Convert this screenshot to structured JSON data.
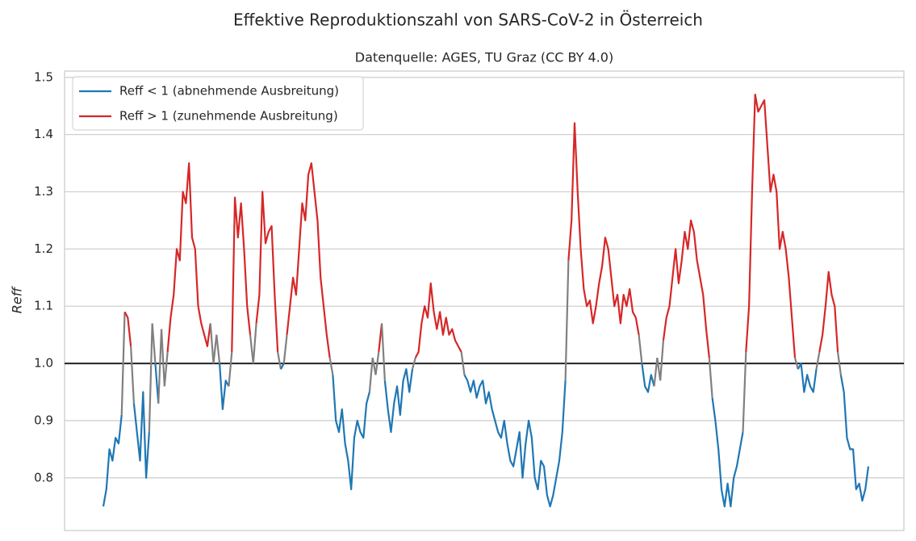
{
  "chart_data": {
    "type": "threshold_line",
    "title": "Effektive Reproduktionszahl von SARS-CoV-2 in Österreich",
    "subtitle": "Datenquelle: AGES, TU Graz (CC BY 4.0)",
    "ylabel": "Reff",
    "ylim": [
      0.708,
      1.511
    ],
    "yticks": [
      0.8,
      0.9,
      {
        "value": 1,
        "label": "1.0"
      },
      1.1,
      1.2,
      1.3,
      1.4,
      1.5
    ],
    "grid": true,
    "threshold": 1,
    "hline": 1,
    "hline_color": "#222222",
    "crossing_color": "#808080",
    "legend_position": "upper left",
    "series": [
      {
        "name": "Reff < 1 (abnehmende Ausbreitung)",
        "color": "#1f77b4"
      },
      {
        "name": "Reff > 1 (zunehmende Ausbreitung)",
        "color": "#d62728"
      }
    ],
    "values": [
      0.75,
      0.78,
      0.85,
      0.83,
      0.87,
      0.86,
      0.91,
      1.09,
      1.08,
      1.03,
      0.93,
      0.88,
      0.83,
      0.95,
      0.8,
      0.88,
      1.07,
      1.0,
      0.93,
      1.06,
      0.96,
      1.02,
      1.08,
      1.12,
      1.2,
      1.18,
      1.3,
      1.28,
      1.35,
      1.22,
      1.2,
      1.1,
      1.07,
      1.05,
      1.03,
      1.07,
      1.0,
      1.05,
      1.0,
      0.92,
      0.97,
      0.96,
      1.02,
      1.29,
      1.22,
      1.28,
      1.2,
      1.1,
      1.05,
      1.0,
      1.07,
      1.12,
      1.3,
      1.21,
      1.23,
      1.24,
      1.12,
      1.02,
      0.99,
      1.0,
      1.05,
      1.1,
      1.15,
      1.12,
      1.2,
      1.28,
      1.25,
      1.33,
      1.35,
      1.3,
      1.25,
      1.15,
      1.1,
      1.05,
      1.01,
      0.98,
      0.9,
      0.88,
      0.92,
      0.86,
      0.83,
      0.78,
      0.87,
      0.9,
      0.88,
      0.87,
      0.93,
      0.95,
      1.01,
      0.98,
      1.02,
      1.07,
      0.97,
      0.92,
      0.88,
      0.93,
      0.96,
      0.91,
      0.97,
      0.99,
      0.95,
      0.99,
      1.01,
      1.02,
      1.07,
      1.1,
      1.08,
      1.14,
      1.09,
      1.06,
      1.09,
      1.05,
      1.08,
      1.05,
      1.06,
      1.04,
      1.03,
      1.02,
      0.98,
      0.97,
      0.95,
      0.97,
      0.94,
      0.96,
      0.97,
      0.93,
      0.95,
      0.92,
      0.9,
      0.88,
      0.87,
      0.9,
      0.86,
      0.83,
      0.82,
      0.85,
      0.88,
      0.8,
      0.86,
      0.9,
      0.87,
      0.8,
      0.78,
      0.83,
      0.82,
      0.77,
      0.75,
      0.77,
      0.8,
      0.83,
      0.88,
      0.97,
      1.18,
      1.25,
      1.42,
      1.3,
      1.2,
      1.13,
      1.1,
      1.11,
      1.07,
      1.1,
      1.14,
      1.17,
      1.22,
      1.2,
      1.15,
      1.1,
      1.12,
      1.07,
      1.12,
      1.1,
      1.13,
      1.09,
      1.08,
      1.05,
      1.0,
      0.96,
      0.95,
      0.98,
      0.96,
      1.01,
      0.97,
      1.04,
      1.08,
      1.1,
      1.15,
      1.2,
      1.14,
      1.18,
      1.23,
      1.2,
      1.25,
      1.23,
      1.18,
      1.15,
      1.12,
      1.06,
      1.01,
      0.94,
      0.9,
      0.85,
      0.78,
      0.75,
      0.79,
      0.75,
      0.8,
      0.82,
      0.85,
      0.88,
      1.02,
      1.1,
      1.3,
      1.47,
      1.44,
      1.45,
      1.46,
      1.38,
      1.3,
      1.33,
      1.3,
      1.2,
      1.23,
      1.2,
      1.15,
      1.08,
      1.01,
      0.99,
      1.0,
      0.95,
      0.98,
      0.96,
      0.95,
      0.99,
      1.02,
      1.05,
      1.1,
      1.16,
      1.12,
      1.1,
      1.02,
      0.98,
      0.95,
      0.87,
      0.85,
      0.85,
      0.78,
      0.79,
      0.76,
      0.78,
      0.82
    ]
  }
}
